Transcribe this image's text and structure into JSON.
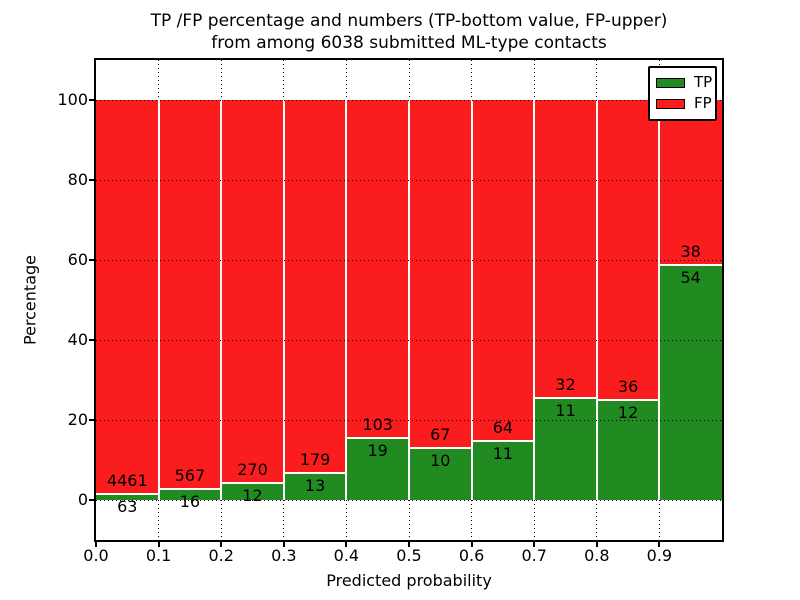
{
  "title": {
    "line1": "TP /FP percentage and numbers (TP-bottom value, FP-upper)",
    "line2": "from among 6038 submitted ML-type contacts"
  },
  "axes": {
    "xlabel": "Predicted probability",
    "ylabel": "Percentage"
  },
  "colors": {
    "tp_green": "#218a21",
    "fp_red": "#fb1d1d",
    "grid": "#000000",
    "background": "#ffffff"
  },
  "chart_data": {
    "type": "bar",
    "subtype": "stacked-percentage-histogram",
    "title": "TP /FP percentage and numbers (TP-bottom value, FP-upper) from among 6038 submitted ML-type contacts",
    "total_contacts": 6038,
    "xlabel": "Predicted probability",
    "ylabel": "Percentage",
    "x_ticks": [
      "0.0",
      "0.1",
      "0.2",
      "0.3",
      "0.4",
      "0.5",
      "0.6",
      "0.7",
      "0.8",
      "0.9"
    ],
    "y_ticks": [
      0,
      20,
      40,
      60,
      80,
      100
    ],
    "xlim": [
      0.0,
      1.0
    ],
    "ylim": [
      -10,
      110
    ],
    "bin_width": 0.1,
    "grid": true,
    "legend_position": "upper right",
    "series": [
      {
        "name": "TP",
        "color": "#218a21",
        "counts": [
          63,
          16,
          12,
          13,
          19,
          10,
          11,
          11,
          12,
          54
        ]
      },
      {
        "name": "FP",
        "color": "#fb1d1d",
        "counts": [
          4461,
          567,
          270,
          179,
          103,
          67,
          64,
          32,
          36,
          38
        ]
      }
    ],
    "tp_percent_per_bin": [
      1.39,
      2.74,
      4.26,
      6.77,
      15.57,
      12.99,
      14.67,
      25.58,
      25.0,
      58.7
    ],
    "fp_percent_per_bin": [
      98.61,
      97.26,
      95.74,
      93.23,
      84.43,
      87.01,
      85.33,
      74.42,
      75.0,
      41.3
    ]
  }
}
